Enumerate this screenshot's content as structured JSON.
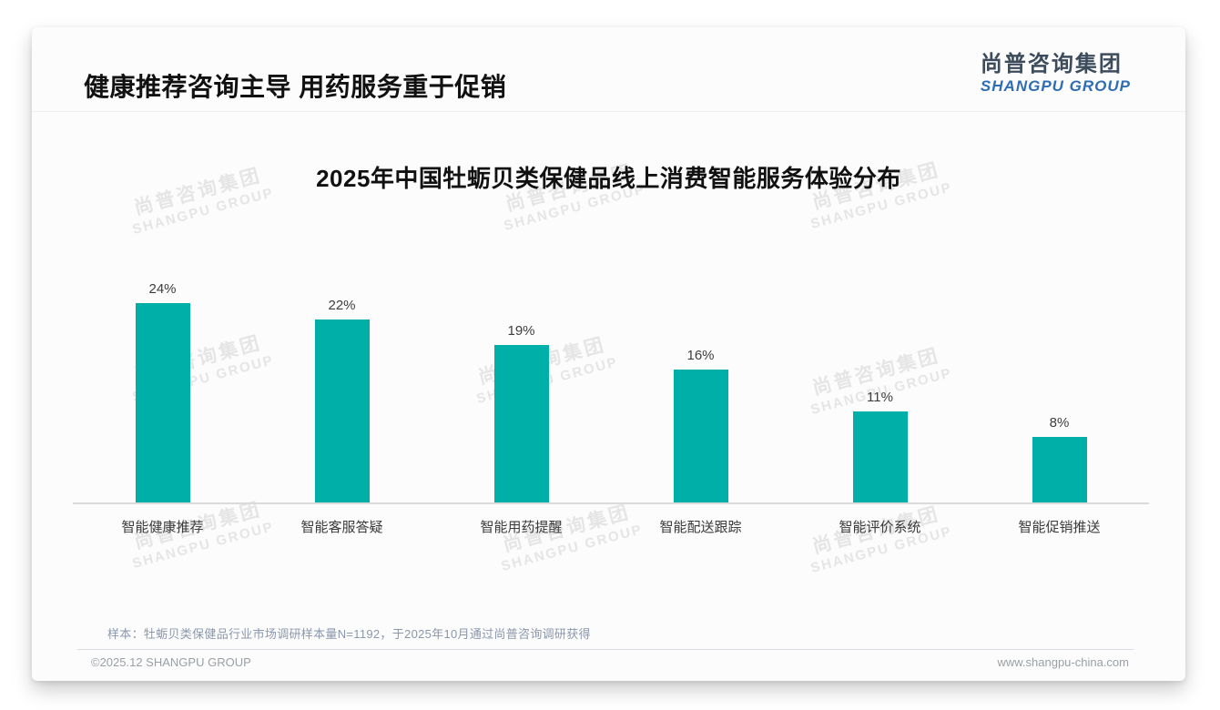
{
  "header": {
    "title": "健康推荐咨询主导 用药服务重于促销"
  },
  "logo": {
    "cn": "尚普咨询集团",
    "en": "SHANGPU GROUP"
  },
  "watermark": {
    "line1": "尚普咨询集团",
    "line2": "SHANGPU GROUP"
  },
  "chart_data": {
    "type": "bar",
    "title": "2025年中国牡蛎贝类保健品线上消费智能服务体验分布",
    "categories": [
      "智能健康推荐",
      "智能客服答疑",
      "智能用药提醒",
      "智能配送跟踪",
      "智能评价系统",
      "智能促销推送"
    ],
    "values": [
      24,
      22,
      19,
      16,
      11,
      8
    ],
    "value_labels": [
      "24%",
      "22%",
      "19%",
      "16%",
      "11%",
      "8%"
    ],
    "unit": "%",
    "ylim": [
      0,
      26
    ],
    "grid": false,
    "legend": "none",
    "bar_color": "#00b0a8",
    "xlabel": "",
    "ylabel": ""
  },
  "footer": {
    "note": "样本：牡蛎贝类保健品行业市场调研样本量N=1192，于2025年10月通过尚普咨询调研获得",
    "copyright": "©2025.12 SHANGPU GROUP",
    "website": "www.shangpu-china.com"
  },
  "colors": {
    "bar_teal": "#00b0a8",
    "logo_blue": "#2f6db5",
    "logo_dark": "#3d4c5c",
    "note_gray_blue": "#8a97ac",
    "footer_gray": "#9aa0a6"
  }
}
